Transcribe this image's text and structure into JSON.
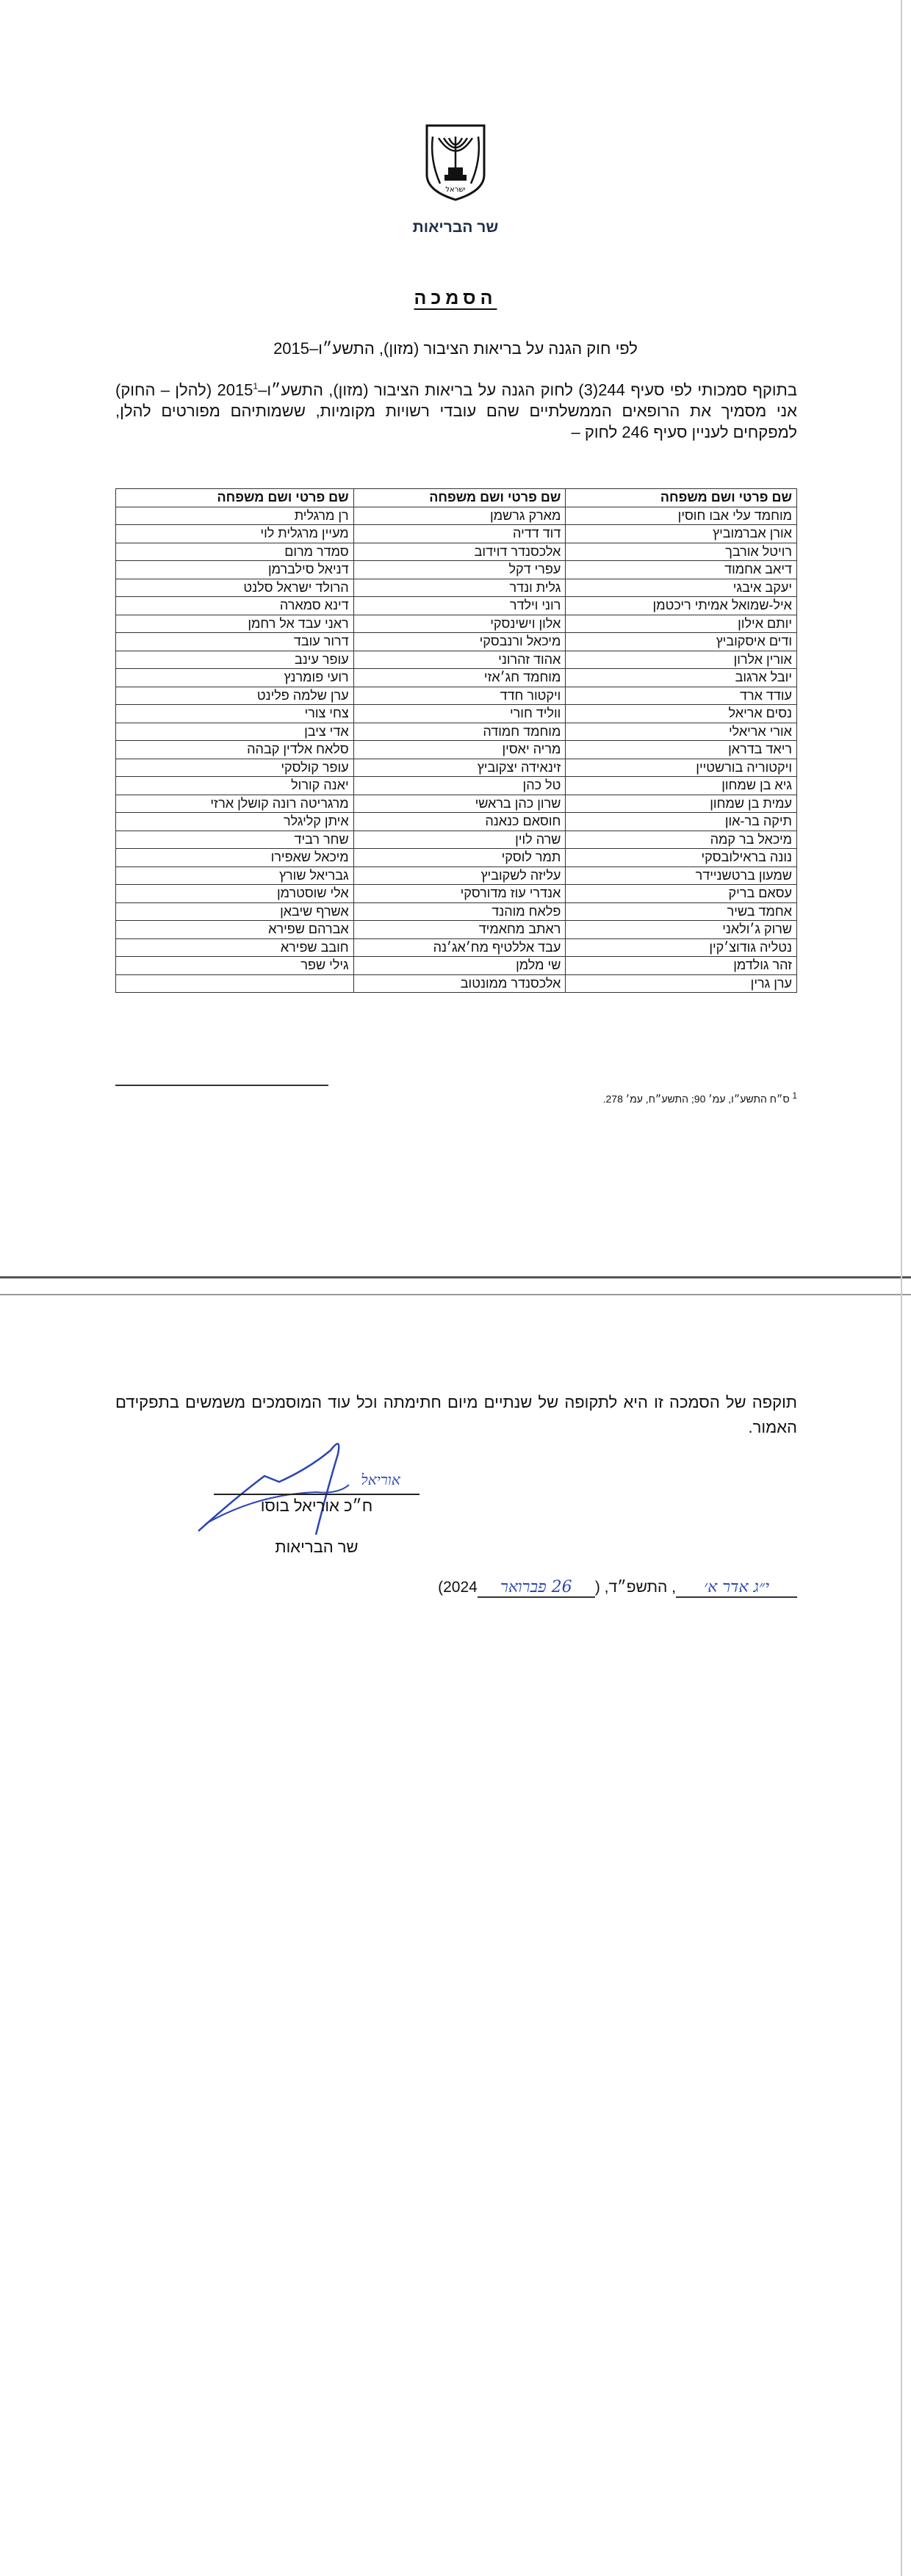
{
  "header": {
    "emblem_text": "ישראל",
    "minister": "שר הבריאות"
  },
  "title": "הסמכה",
  "subtitle": "לפי חוק הגנה על בריאות הציבור (מזון), התשע״ו–2015",
  "paragraph": {
    "before_sup": "בתוקף סמכותי לפי סעיף 244(3) לחוק הגנה על בריאות הציבור (מזון), התשע״ו–2015",
    "sup": "1",
    "after_sup": " (להלן – החוק) אני מסמיך את הרופאים הממשלתיים שהם עובדי רשויות מקומיות, ששמותיהם מפורטים להלן, למפקחים לעניין סעיף 246 לחוק –"
  },
  "table": {
    "headers": [
      "שם פרטי ושם משפחה",
      "שם פרטי ושם משפחה",
      "שם פרטי ושם משפחה"
    ],
    "rows": [
      [
        "מוחמד עלי אבו חוסין",
        "מארק גרשמן",
        "רן מרגלית"
      ],
      [
        "אורן אברמוביץ",
        "דוד דדיה",
        "מעיין מרגלית לוי"
      ],
      [
        "רויטל אורבך",
        "אלכסנדר דוידוב",
        "סמדר מרום"
      ],
      [
        "דיאב אחמוד",
        "עפרי דקל",
        "דניאל סילברמן"
      ],
      [
        "יעקב איבגי",
        "גלית ונדר",
        "הרולד ישראל סלנט"
      ],
      [
        "איל-שמואל אמיתי ריכטמן",
        "רוני וילדר",
        "דינא סמארה"
      ],
      [
        "יותם אילון",
        "אלון וישינסקי",
        "ראני עבד אל רחמן"
      ],
      [
        "ודים איסקוביץ",
        "מיכאל ורנבסקי",
        "דרור עובד"
      ],
      [
        "אורין אלרון",
        "אהוד זהרוני",
        "עופר עינב"
      ],
      [
        "יובל ארגוב",
        "מוחמד חג׳אזי",
        "רועי פומרנץ"
      ],
      [
        "עודד ארד",
        "ויקטור חדד",
        "ערן שלמה פלינט"
      ],
      [
        "נסים אריאל",
        "ווליד חורי",
        "צחי צורי"
      ],
      [
        "אורי אריאלי",
        "מוחמד חמודה",
        "אדי ציבן"
      ],
      [
        "ריאד בדראן",
        "מריה יאסין",
        "סלאח אלדין קבהה"
      ],
      [
        "ויקטוריה בורשטיין",
        "זינאידה יצקוביץ",
        "עופר קולסקי"
      ],
      [
        "גיא בן שמחון",
        "טל כהן",
        "יאנה קורול"
      ],
      [
        "עמית בן שמחון",
        "שרון כהן בראשי",
        "מרגריטה רונה קושלן ארזי"
      ],
      [
        "תיקה בר-און",
        "חוסאם כנאנה",
        "איתן קליגלר"
      ],
      [
        "מיכאל בר קמה",
        "שרה לוין",
        "שחר רביד"
      ],
      [
        "נונה בראילובסקי",
        "תמר לוסקי",
        "מיכאל שאפירו"
      ],
      [
        "שמעון ברטשניידר",
        "עליזה לשקוביץ",
        "גבריאל שורץ"
      ],
      [
        "עסאם בריק",
        "אנדרי עוז מדורסקי",
        "אלי שוסטרמן"
      ],
      [
        "אחמד בשיר",
        "פלאח מוהנד",
        "אשרף שיבאן"
      ],
      [
        "שרוק ג׳ולאני",
        "ראתב מחאמיד",
        "אברהם שפירא"
      ],
      [
        "נטליה גודוצ׳קין",
        "עבד אללטיף מח׳אג׳נה",
        "חובב שפירא"
      ],
      [
        "זהר גולדמן",
        "שי מלמן",
        "גילי שפר"
      ],
      [
        "ערן גרין",
        "אלכסנדר ממונטוב",
        ""
      ]
    ]
  },
  "footnote": {
    "marker": "1",
    "text": "ס״ח התשע״ו, עמ׳ 90; התשע״ח, עמ׳ 278."
  },
  "page2": {
    "validity": "תוקפה של הסמכה זו היא לתקופה של שנתיים מיום חתימתה וכל עוד המוסמכים משמשים בתפקידם האמור.",
    "signer_name": "ח״כ אוריאל בוסו",
    "signer_role": "שר הבריאות",
    "signature_initials": "אוריאל",
    "date": {
      "hebrew_handwritten": "י״ג אדר א׳",
      "hebrew_year": ", התשפ״ד, (",
      "gregorian_handwritten": "26 פברואר",
      "gregorian_year": "2024)"
    }
  },
  "colors": {
    "ink": "#111111",
    "signature": "#2b45b5",
    "header": "#1f2f4a"
  }
}
